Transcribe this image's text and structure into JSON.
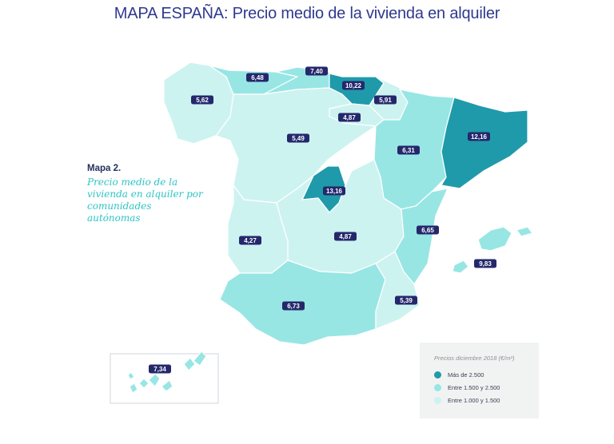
{
  "title": "MAPA ESPAÑA: Precio medio de la vivienda en alquiler",
  "side_title": "Mapa 2.",
  "side_subtitle": "Precio medio de la vivienda en alquiler por comunidades autónomas",
  "legend": {
    "title": "Precios diciembre 2018 (€/m²)",
    "items": [
      {
        "label": "Más de 2.500",
        "color": "#1f9aaa"
      },
      {
        "label": "Entre 1.500 y 2.500",
        "color": "#97e6e4"
      },
      {
        "label": "Entre 1.000 y 1.500",
        "color": "#cdf3f1"
      }
    ]
  },
  "colors": {
    "label_bg": "#24286b",
    "border": "#ffffff"
  },
  "regions": [
    {
      "name": "Galicia",
      "value": "5,62",
      "tier": 2
    },
    {
      "name": "Asturias",
      "value": "6,48",
      "tier": 1
    },
    {
      "name": "Cantabria",
      "value": "7,40",
      "tier": 1
    },
    {
      "name": "País Vasco",
      "value": "10,22",
      "tier": 0
    },
    {
      "name": "Navarra",
      "value": "5,91",
      "tier": 2
    },
    {
      "name": "La Rioja",
      "value": "4,87",
      "tier": 2
    },
    {
      "name": "Castilla y León",
      "value": "5,49",
      "tier": 2
    },
    {
      "name": "Aragón",
      "value": "6,31",
      "tier": 1
    },
    {
      "name": "Cataluña",
      "value": "12,16",
      "tier": 0
    },
    {
      "name": "Madrid",
      "value": "13,16",
      "tier": 0
    },
    {
      "name": "Extremadura",
      "value": "4,27",
      "tier": 2
    },
    {
      "name": "Castilla-La Mancha",
      "value": "4,87",
      "tier": 2
    },
    {
      "name": "Comunidad Valenciana",
      "value": "6,65",
      "tier": 1
    },
    {
      "name": "Islas Baleares",
      "value": "9,83",
      "tier": 1
    },
    {
      "name": "Andalucía",
      "value": "6,73",
      "tier": 1
    },
    {
      "name": "Murcia",
      "value": "5,39",
      "tier": 2
    },
    {
      "name": "Canarias",
      "value": "7,34",
      "tier": 1
    }
  ]
}
